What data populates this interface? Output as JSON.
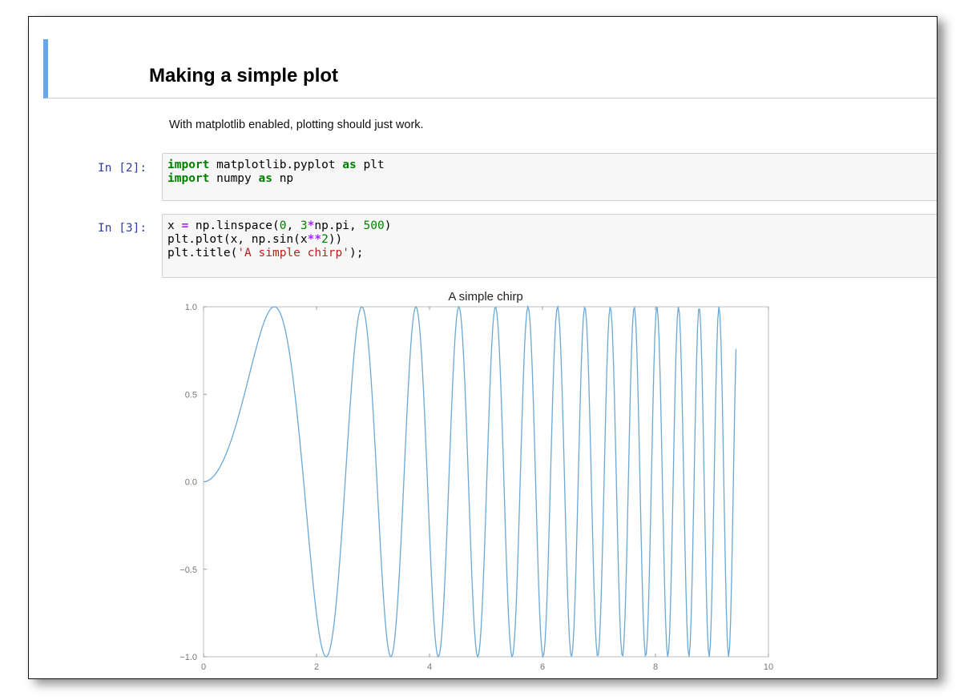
{
  "notebook": {
    "markdown": {
      "heading": "Making a simple plot",
      "paragraph": "With matplotlib enabled, plotting should just work."
    },
    "cells": [
      {
        "prompt": "In [2]:",
        "lines": [
          [
            {
              "t": "import",
              "c": "kw"
            },
            {
              "t": " matplotlib.pyplot "
            },
            {
              "t": "as",
              "c": "kw"
            },
            {
              "t": " plt"
            }
          ],
          [
            {
              "t": "import",
              "c": "kw"
            },
            {
              "t": " numpy "
            },
            {
              "t": "as",
              "c": "kw"
            },
            {
              "t": " np"
            }
          ]
        ]
      },
      {
        "prompt": "In [3]:",
        "lines": [
          [
            {
              "t": "x "
            },
            {
              "t": "=",
              "c": "op"
            },
            {
              "t": " np.linspace("
            },
            {
              "t": "0",
              "c": "num"
            },
            {
              "t": ", "
            },
            {
              "t": "3",
              "c": "num"
            },
            {
              "t": "*",
              "c": "op"
            },
            {
              "t": "np.pi, "
            },
            {
              "t": "500",
              "c": "num"
            },
            {
              "t": ")"
            }
          ],
          [
            {
              "t": "plt.plot(x, np.sin(x"
            },
            {
              "t": "**",
              "c": "op"
            },
            {
              "t": "2",
              "c": "num"
            },
            {
              "t": "))"
            }
          ],
          [
            {
              "t": "plt.title("
            },
            {
              "t": "'A simple chirp'",
              "c": "str"
            },
            {
              "t": ");"
            }
          ]
        ]
      }
    ]
  },
  "chart_data": {
    "type": "line",
    "title": "A simple chirp",
    "xlabel": "",
    "ylabel": "",
    "xlim": [
      0,
      10
    ],
    "ylim": [
      -1,
      1
    ],
    "x_ticks": [
      "0",
      "2",
      "4",
      "6",
      "8",
      "10"
    ],
    "y_ticks": [
      "−1.0",
      "−0.5",
      "0.0",
      "0.5",
      "1.0"
    ],
    "grid": false,
    "series": [
      {
        "function": "sin(x**2)",
        "x_range": [
          0,
          9.42477796
        ],
        "points": 500,
        "color": "#6aa9d6"
      }
    ]
  },
  "colors": {
    "accent": "#66a6ec",
    "prompt": "#303f9f",
    "line": "#6aa9d6"
  }
}
